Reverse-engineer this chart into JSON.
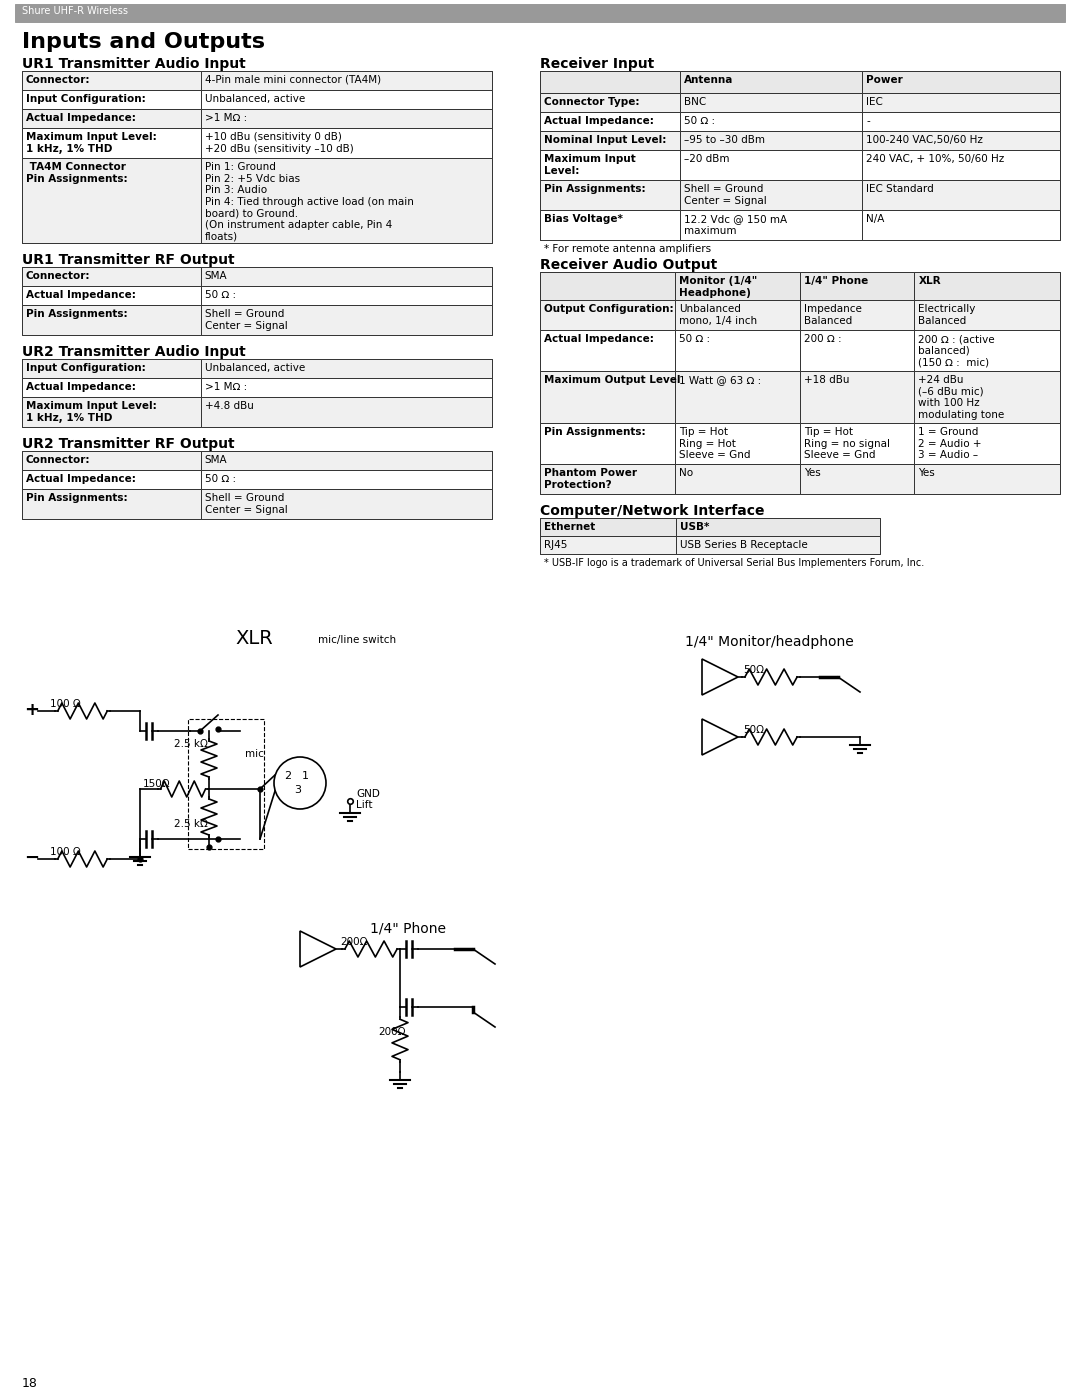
{
  "page_title": "Inputs and Outputs",
  "header_text": "Shure UHF-R Wireless",
  "header_bg": "#999999",
  "header_text_color": "#ffffff",
  "page_bg": "#ffffff",
  "page_number": "18",
  "sections": {
    "ur1_audio_input": {
      "title": "UR1 Transmitter Audio Input",
      "rows": [
        [
          "Connector:",
          "4-Pin male mini connector (TA4M)"
        ],
        [
          "Input Configuration:",
          "Unbalanced, active"
        ],
        [
          "Actual Impedance:",
          ">1 MΩ :"
        ],
        [
          "Maximum Input Level:\n1 kHz, 1% THD",
          "+10 dBu (sensitivity 0 dB)\n+20 dBu (sensitivity –10 dB)"
        ],
        [
          " TA4M Connector\nPin Assignments:",
          "Pin 1: Ground\nPin 2: +5 Vdc bias\nPin 3: Audio\nPin 4: Tied through active load (on main\nboard) to Ground.\n(On instrument adapter cable, Pin 4\nfloats)"
        ]
      ]
    },
    "ur1_rf_output": {
      "title": "UR1 Transmitter RF Output",
      "rows": [
        [
          "Connector:",
          "SMA"
        ],
        [
          "Actual Impedance:",
          "50 Ω :"
        ],
        [
          "Pin Assignments:",
          "Shell = Ground\nCenter = Signal"
        ]
      ]
    },
    "ur2_audio_input": {
      "title": "UR2 Transmitter Audio Input",
      "rows": [
        [
          "Input Configuration:",
          "Unbalanced, active"
        ],
        [
          "Actual Impedance:",
          ">1 MΩ :"
        ],
        [
          "Maximum Input Level:\n1 kHz, 1% THD",
          "+4.8 dBu"
        ]
      ]
    },
    "ur2_rf_output": {
      "title": "UR2 Transmitter RF Output",
      "rows": [
        [
          "Connector:",
          "SMA"
        ],
        [
          "Actual Impedance:",
          "50 Ω :"
        ],
        [
          "Pin Assignments:",
          "Shell = Ground\nCenter = Signal"
        ]
      ]
    },
    "receiver_input": {
      "title": "Receiver Input",
      "header_row": [
        "",
        "Antenna",
        "Power"
      ],
      "rows": [
        [
          "Connector Type:",
          "BNC",
          "IEC"
        ],
        [
          "Actual Impedance:",
          "50 Ω :",
          "-"
        ],
        [
          "Nominal Input Level:",
          "–95 to –30 dBm",
          "100-240 VAC,50/60 Hz"
        ],
        [
          "Maximum Input\nLevel:",
          "–20 dBm",
          "240 VAC, + 10%, 50/60 Hz"
        ],
        [
          "Pin Assignments:",
          "Shell = Ground\nCenter = Signal",
          "IEC Standard"
        ],
        [
          "Bias Voltage*",
          "12.2 Vdc @ 150 mA\nmaximum",
          "N/A"
        ]
      ],
      "footnote": "* For remote antenna amplifiers"
    },
    "receiver_audio_output": {
      "title": "Receiver Audio Output",
      "header_row": [
        "",
        "Monitor (1/4\"\nHeadphone)",
        "1/4\" Phone",
        "XLR"
      ],
      "rows": [
        [
          "Output Configuration:",
          "Unbalanced\nmono, 1/4 inch",
          "Impedance\nBalanced",
          "Electrically\nBalanced"
        ],
        [
          "Actual Impedance:",
          "50 Ω :",
          "200 Ω :",
          "200 Ω : (active\nbalanced)\n(150 Ω :  mic)"
        ],
        [
          "Maximum Output Level",
          "1 Watt @ 63 Ω :",
          "+18 dBu",
          "+24 dBu\n(–6 dBu mic)\nwith 100 Hz\nmodulating tone"
        ],
        [
          "Pin Assignments:",
          "Tip = Hot\nRing = Hot\nSleeve = Gnd",
          "Tip = Hot\nRing = no signal\nSleeve = Gnd",
          "1 = Ground\n2 = Audio +\n3 = Audio –"
        ],
        [
          "Phantom Power\nProtection?",
          "No",
          "Yes",
          "Yes"
        ]
      ]
    },
    "computer_network": {
      "title": "Computer/Network Interface",
      "header_row": [
        "Ethernet",
        "USB*"
      ],
      "rows": [
        [
          "RJ45",
          "USB Series B Receptacle"
        ]
      ],
      "footnote": "* USB-IF logo is a trademark of Universal Serial Bus Implementers Forum, Inc."
    }
  }
}
